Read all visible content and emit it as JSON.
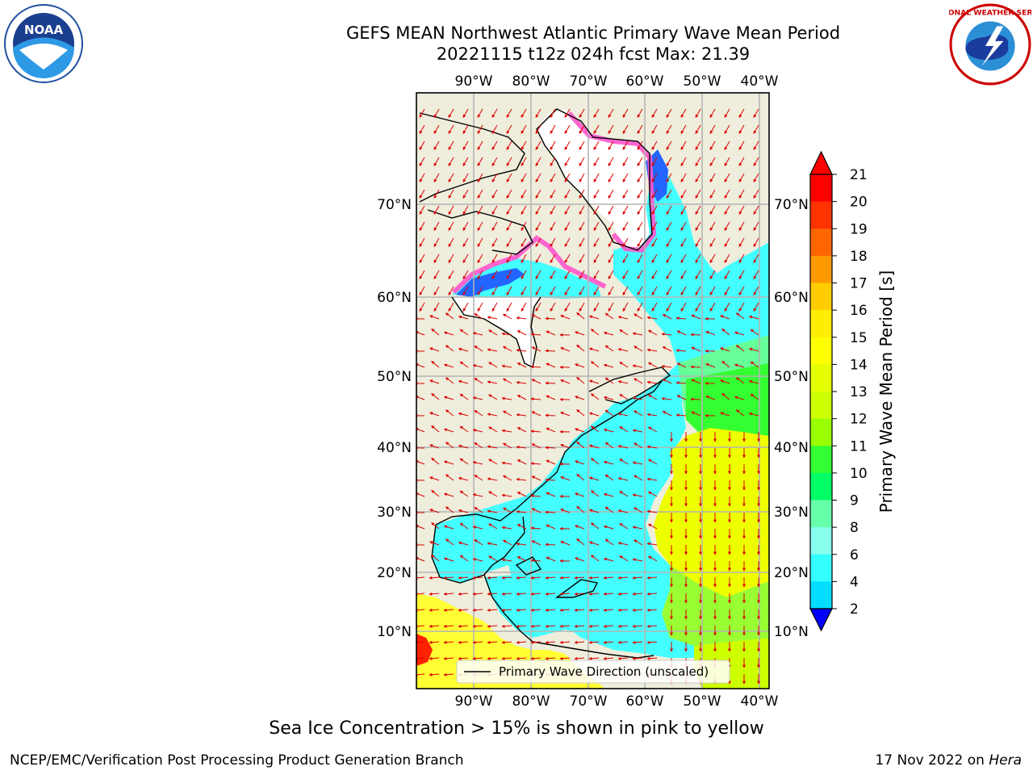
{
  "title_line1": "GEFS MEAN Northwest Atlantic Primary Wave Mean Period",
  "title_line2": "20221115 t12z 024h fcst   Max: 21.39",
  "lon_ticks": [
    "90°W",
    "80°W",
    "70°W",
    "60°W",
    "50°W",
    "40°W"
  ],
  "lat_ticks": [
    "70°N",
    "60°N",
    "50°N",
    "40°N",
    "30°N",
    "20°N",
    "10°N"
  ],
  "legend_label": "Primary Wave Direction (unscaled)",
  "colorbar": {
    "label": "Primary Wave Mean Period [s]",
    "ticks": [
      "21",
      "20",
      "19",
      "18",
      "17",
      "16",
      "15",
      "14",
      "13",
      "12",
      "11",
      "10",
      "9",
      "8",
      "6",
      "4",
      "2"
    ],
    "colors": [
      "#ff0000",
      "#ff3300",
      "#ff6600",
      "#ff9900",
      "#ffcc00",
      "#ffee00",
      "#ffff00",
      "#e6ff00",
      "#ccff00",
      "#99ff00",
      "#33ff33",
      "#00ff66",
      "#66ffaa",
      "#88ffee",
      "#33ffff",
      "#00ddff",
      "#0066ff"
    ],
    "extend_high": "#ff0000",
    "extend_low": "#0000ff"
  },
  "colors": {
    "land": "#efeddc",
    "ice": "#ffffff",
    "arrow": "#dd0000",
    "grid": "#b4b4b4"
  },
  "footer_note": "Sea Ice Concentration > 15% is shown in pink to yellow",
  "footer_credit": "NCEP/EMC/Verification Post Processing Product Generation Branch",
  "footer_date": "17 Nov 2022 on",
  "footer_host": "Hera",
  "logos": {
    "left_text": "NOAA",
    "right_text": "NATIONAL WEATHER SERVICE"
  }
}
